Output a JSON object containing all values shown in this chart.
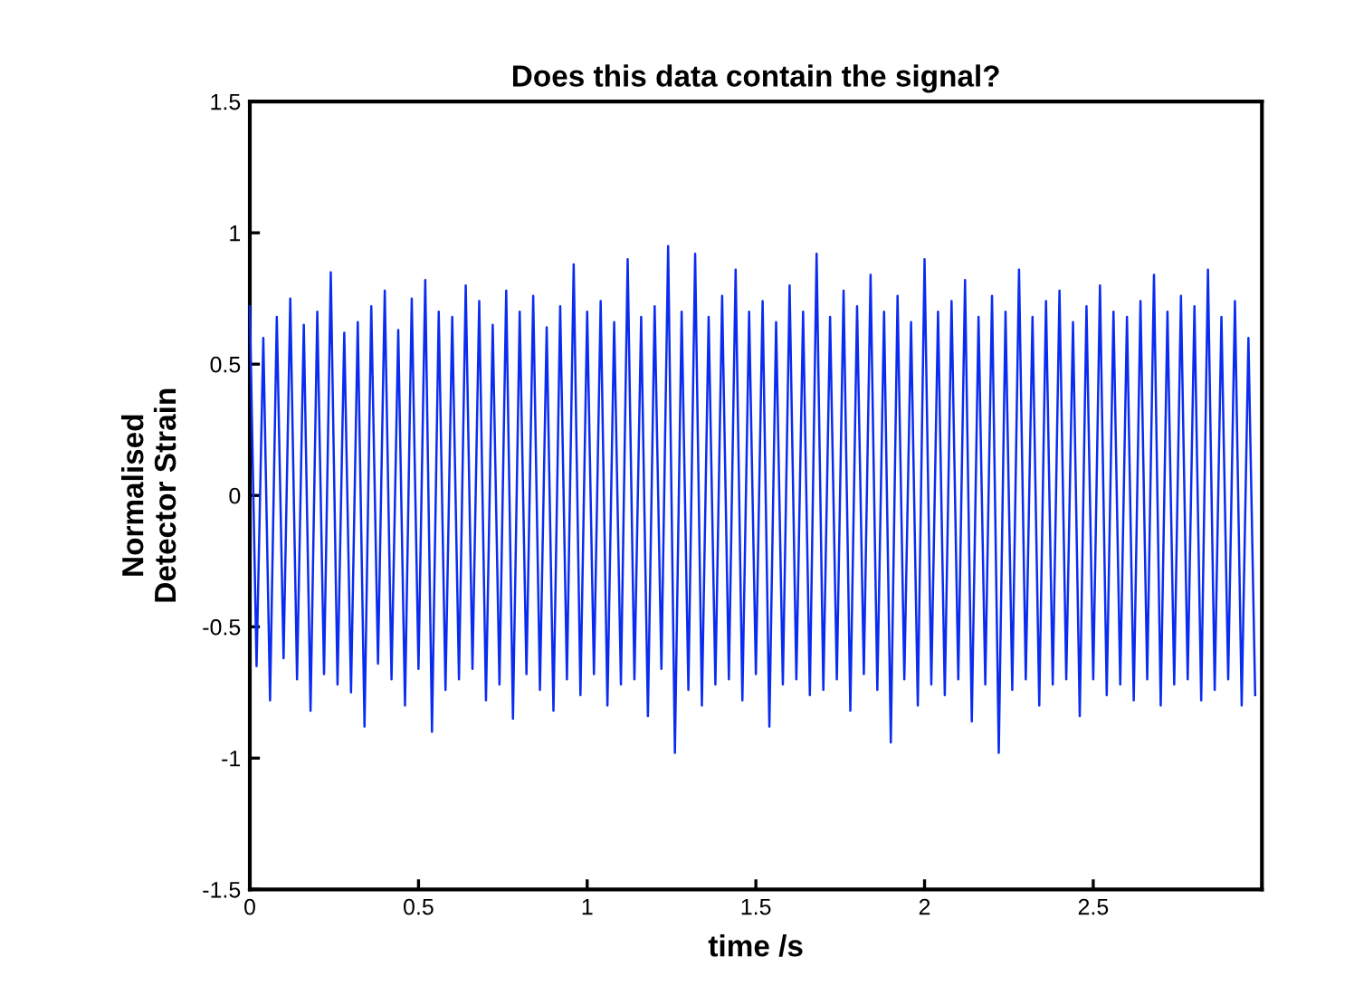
{
  "chart_data": {
    "type": "line",
    "title": "Does this data contain the signal?",
    "xlabel": "time /s",
    "ylabel": "Normalised\nDetector Strain",
    "xlim": [
      0,
      3
    ],
    "ylim": [
      -1.5,
      1.5
    ],
    "xticks": [
      0,
      0.5,
      1,
      1.5,
      2,
      2.5
    ],
    "yticks": [
      -1.5,
      -1,
      -0.5,
      0,
      0.5,
      1,
      1.5
    ],
    "grid": false,
    "legend": false,
    "marker": "none",
    "line_style": "solid",
    "x": [
      0,
      0.02,
      0.04,
      0.06,
      0.08,
      0.1,
      0.12,
      0.14,
      0.16,
      0.18,
      0.2,
      0.22,
      0.24,
      0.26,
      0.28,
      0.3,
      0.32,
      0.34,
      0.36,
      0.38,
      0.4,
      0.42,
      0.44,
      0.46,
      0.48,
      0.5,
      0.52,
      0.54,
      0.56,
      0.58,
      0.6,
      0.62,
      0.64,
      0.66,
      0.68,
      0.7,
      0.72,
      0.74,
      0.76,
      0.78,
      0.8,
      0.82,
      0.84,
      0.86,
      0.88,
      0.9,
      0.92,
      0.94,
      0.96,
      0.98,
      1,
      1.02,
      1.04,
      1.06,
      1.08,
      1.1,
      1.12,
      1.14,
      1.16,
      1.18,
      1.2,
      1.22,
      1.24,
      1.26,
      1.28,
      1.3,
      1.32,
      1.34,
      1.36,
      1.38,
      1.4,
      1.42,
      1.44,
      1.46,
      1.48,
      1.5,
      1.52,
      1.54,
      1.56,
      1.58,
      1.6,
      1.62,
      1.64,
      1.66,
      1.68,
      1.7,
      1.72,
      1.74,
      1.76,
      1.78,
      1.8,
      1.82,
      1.84,
      1.86,
      1.88,
      1.9,
      1.92,
      1.94,
      1.96,
      1.98,
      2,
      2.02,
      2.04,
      2.06,
      2.08,
      2.1,
      2.12,
      2.14,
      2.16,
      2.18,
      2.2,
      2.22,
      2.24,
      2.26,
      2.28,
      2.3,
      2.32,
      2.34,
      2.36,
      2.38,
      2.4,
      2.42,
      2.44,
      2.46,
      2.48,
      2.5,
      2.52,
      2.54,
      2.56,
      2.58,
      2.6,
      2.62,
      2.64,
      2.66,
      2.68,
      2.7,
      2.72,
      2.74,
      2.76,
      2.78,
      2.8,
      2.82,
      2.84,
      2.86,
      2.88,
      2.9,
      2.92,
      2.94,
      2.96,
      2.98
    ],
    "series": [
      {
        "color": "#0a2cf0",
        "values": [
          0.72,
          -0.65,
          0.6,
          -0.78,
          0.68,
          -0.62,
          0.75,
          -0.7,
          0.65,
          -0.82,
          0.7,
          -0.68,
          0.85,
          -0.72,
          0.62,
          -0.75,
          0.66,
          -0.88,
          0.72,
          -0.64,
          0.78,
          -0.7,
          0.63,
          -0.8,
          0.75,
          -0.66,
          0.82,
          -0.9,
          0.7,
          -0.74,
          0.68,
          -0.7,
          0.8,
          -0.66,
          0.74,
          -0.78,
          0.65,
          -0.72,
          0.78,
          -0.85,
          0.7,
          -0.68,
          0.76,
          -0.74,
          0.64,
          -0.82,
          0.72,
          -0.7,
          0.88,
          -0.76,
          0.7,
          -0.68,
          0.74,
          -0.8,
          0.66,
          -0.72,
          0.9,
          -0.7,
          0.68,
          -0.84,
          0.72,
          -0.66,
          0.95,
          -0.98,
          0.7,
          -0.74,
          0.92,
          -0.8,
          0.68,
          -0.72,
          0.76,
          -0.7,
          0.86,
          -0.78,
          0.7,
          -0.68,
          0.74,
          -0.88,
          0.66,
          -0.72,
          0.8,
          -0.7,
          0.7,
          -0.76,
          0.92,
          -0.74,
          0.68,
          -0.7,
          0.78,
          -0.82,
          0.72,
          -0.68,
          0.84,
          -0.74,
          0.7,
          -0.94,
          0.76,
          -0.7,
          0.66,
          -0.8,
          0.9,
          -0.72,
          0.7,
          -0.76,
          0.74,
          -0.7,
          0.82,
          -0.86,
          0.68,
          -0.72,
          0.76,
          -0.98,
          0.7,
          -0.74,
          0.86,
          -0.7,
          0.68,
          -0.8,
          0.74,
          -0.72,
          0.78,
          -0.7,
          0.66,
          -0.84,
          0.72,
          -0.7,
          0.8,
          -0.76,
          0.7,
          -0.72,
          0.68,
          -0.78,
          0.74,
          -0.7,
          0.84,
          -0.8,
          0.7,
          -0.72,
          0.76,
          -0.7,
          0.72,
          -0.78,
          0.86,
          -0.74,
          0.68,
          -0.7,
          0.74,
          -0.8,
          0.6,
          -0.76
        ]
      }
    ]
  }
}
